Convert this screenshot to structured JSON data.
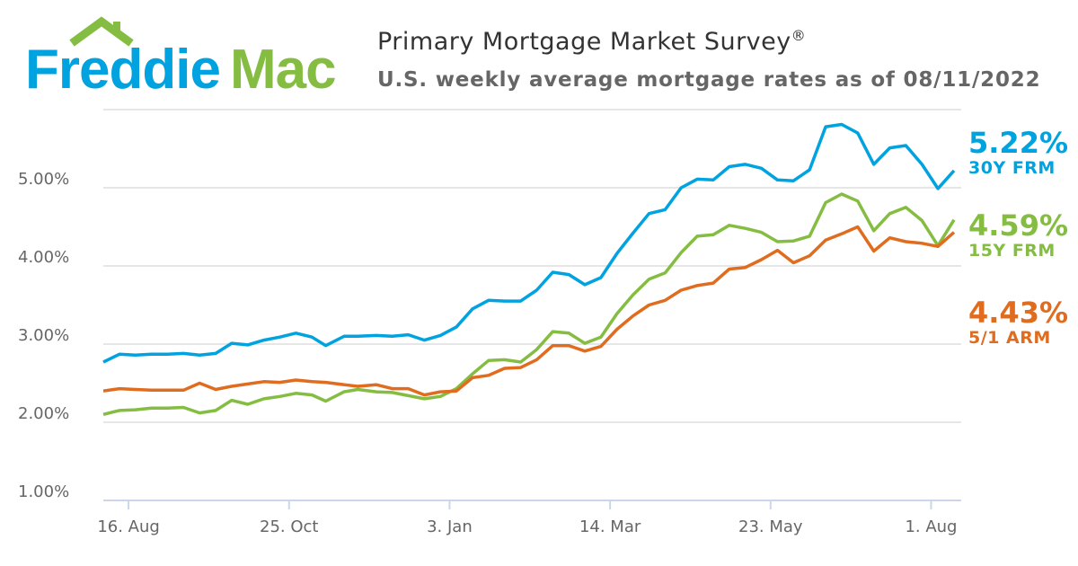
{
  "brand": {
    "logo_text": "Freddie Mac",
    "colors": {
      "blue": "#00a3e0",
      "green": "#84bd41"
    }
  },
  "header": {
    "title": "Primary Mortgage Market Survey",
    "title_mark": "®",
    "subtitle": "U.S. weekly average mortgage rates as of 08/11/2022"
  },
  "chart_data": {
    "type": "line",
    "title": "Primary Mortgage Market Survey",
    "subtitle": "U.S. weekly average mortgage rates as of 08/11/2022",
    "x": [
      "2021-08-05",
      "2021-08-12",
      "2021-08-19",
      "2021-08-26",
      "2021-09-02",
      "2021-09-09",
      "2021-09-16",
      "2021-09-23",
      "2021-09-30",
      "2021-10-07",
      "2021-10-14",
      "2021-10-21",
      "2021-10-28",
      "2021-11-04",
      "2021-11-10",
      "2021-11-18",
      "2021-11-24",
      "2021-12-02",
      "2021-12-09",
      "2021-12-16",
      "2021-12-23",
      "2021-12-30",
      "2022-01-06",
      "2022-01-13",
      "2022-01-20",
      "2022-01-27",
      "2022-02-03",
      "2022-02-10",
      "2022-02-17",
      "2022-02-24",
      "2022-03-03",
      "2022-03-10",
      "2022-03-17",
      "2022-03-24",
      "2022-03-31",
      "2022-04-07",
      "2022-04-14",
      "2022-04-21",
      "2022-04-28",
      "2022-05-05",
      "2022-05-12",
      "2022-05-19",
      "2022-05-26",
      "2022-06-02",
      "2022-06-09",
      "2022-06-16",
      "2022-06-23",
      "2022-06-30",
      "2022-07-07",
      "2022-07-14",
      "2022-07-21",
      "2022-07-28",
      "2022-08-04",
      "2022-08-11"
    ],
    "series": [
      {
        "name": "30Y FRM",
        "latest": "5.22%",
        "color": "#00a3e0",
        "values": [
          2.77,
          2.87,
          2.86,
          2.87,
          2.87,
          2.88,
          2.86,
          2.88,
          3.01,
          2.99,
          3.05,
          3.09,
          3.14,
          3.09,
          2.98,
          3.1,
          3.1,
          3.11,
          3.1,
          3.12,
          3.05,
          3.11,
          3.22,
          3.45,
          3.56,
          3.55,
          3.55,
          3.69,
          3.92,
          3.89,
          3.76,
          3.85,
          4.16,
          4.42,
          4.67,
          4.72,
          5.0,
          5.11,
          5.1,
          5.27,
          5.3,
          5.25,
          5.1,
          5.09,
          5.23,
          5.78,
          5.81,
          5.7,
          5.3,
          5.51,
          5.54,
          5.3,
          4.99,
          5.22
        ]
      },
      {
        "name": "15Y FRM",
        "latest": "4.59%",
        "color": "#84bd41",
        "values": [
          2.1,
          2.15,
          2.16,
          2.18,
          2.18,
          2.19,
          2.12,
          2.15,
          2.28,
          2.23,
          2.3,
          2.33,
          2.37,
          2.35,
          2.27,
          2.39,
          2.42,
          2.39,
          2.38,
          2.34,
          2.3,
          2.33,
          2.43,
          2.62,
          2.79,
          2.8,
          2.77,
          2.93,
          3.16,
          3.14,
          3.01,
          3.09,
          3.39,
          3.63,
          3.83,
          3.91,
          4.17,
          4.38,
          4.4,
          4.52,
          4.48,
          4.43,
          4.31,
          4.32,
          4.38,
          4.81,
          4.92,
          4.83,
          4.45,
          4.67,
          4.75,
          4.58,
          4.26,
          4.59
        ]
      },
      {
        "name": "5/1 ARM",
        "latest": "4.43%",
        "color": "#e06c1f",
        "values": [
          2.4,
          2.43,
          2.42,
          2.41,
          2.41,
          2.41,
          2.5,
          2.42,
          2.46,
          2.49,
          2.52,
          2.51,
          2.54,
          2.52,
          2.51,
          2.48,
          2.46,
          2.48,
          2.43,
          2.43,
          2.35,
          2.39,
          2.4,
          2.57,
          2.6,
          2.69,
          2.7,
          2.8,
          2.98,
          2.98,
          2.91,
          2.97,
          3.19,
          3.36,
          3.5,
          3.56,
          3.69,
          3.75,
          3.78,
          3.96,
          3.98,
          4.08,
          4.2,
          4.04,
          4.13,
          4.33,
          4.41,
          4.5,
          4.19,
          4.36,
          4.31,
          4.29,
          4.25,
          4.43
        ]
      }
    ],
    "ylim": [
      1,
      6
    ],
    "yticks": [
      "1.00%",
      "2.00%",
      "3.00%",
      "4.00%",
      "5.00%"
    ],
    "xticks": [
      {
        "date": "2021-08-16",
        "label": "16. Aug"
      },
      {
        "date": "2021-10-25",
        "label": "25. Oct"
      },
      {
        "date": "2022-01-03",
        "label": "3. Jan"
      },
      {
        "date": "2022-03-14",
        "label": "14. Mar"
      },
      {
        "date": "2022-05-23",
        "label": "23. May"
      },
      {
        "date": "2022-08-01",
        "label": "1. Aug"
      }
    ],
    "grid": true,
    "legend": "right, end-of-line labels"
  }
}
